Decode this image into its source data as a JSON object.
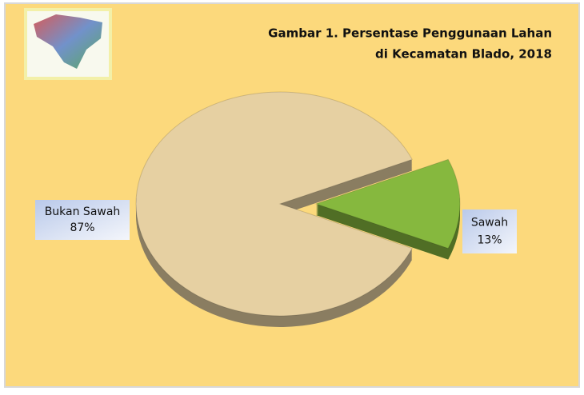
{
  "chart_data": {
    "type": "pie",
    "title": [
      "Gambar 1. Persentase Penggunaan Lahan",
      "di Kecamatan Blado, 2018"
    ],
    "categories": [
      "Bukan Sawah",
      "Sawah"
    ],
    "values": [
      87,
      13
    ],
    "value_labels": [
      "87%",
      "13%"
    ],
    "colors": [
      "#e6d0a2",
      "#86b83e"
    ]
  }
}
